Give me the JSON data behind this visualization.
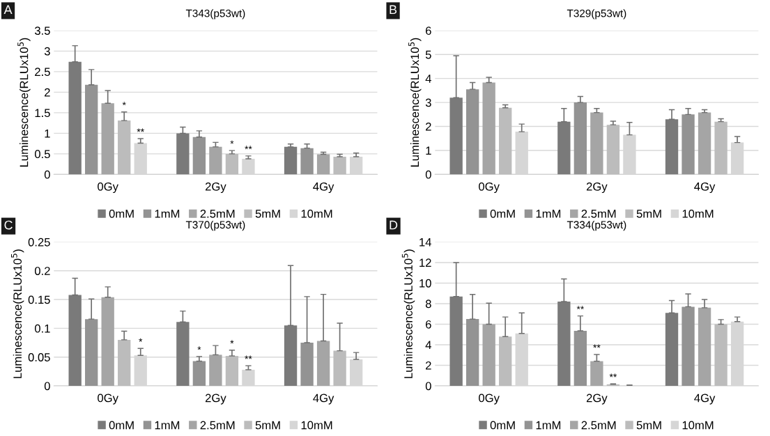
{
  "chart_data": [
    {
      "type": "bar",
      "title": "T343(p53wt)",
      "ylabel": "Luminescence(RLUx10$^{5}$)",
      "annotations": [
        "A"
      ],
      "categories": [
        "0Gy",
        "2Gy",
        "4Gy"
      ],
      "ylim": [
        0,
        3.5
      ],
      "yticks": [
        0,
        0.5,
        1,
        1.5,
        2,
        2.5,
        3,
        3.5
      ],
      "grid": "y",
      "legend": "bottom",
      "series": [
        {
          "name": "0mM",
          "color": "#7a7a7a",
          "values": [
            2.74,
            1.0,
            0.67
          ],
          "errors": [
            [
              2.74,
              3.13
            ],
            [
              1.0,
              1.15
            ],
            [
              0.67,
              0.74
            ]
          ]
        },
        {
          "name": "1mM",
          "color": "#939393",
          "values": [
            2.18,
            0.91,
            0.64
          ],
          "errors": [
            [
              2.18,
              2.55
            ],
            [
              0.91,
              1.06
            ],
            [
              0.64,
              0.74
            ]
          ]
        },
        {
          "name": "2.5mM",
          "color": "#a5a5a5",
          "values": [
            1.73,
            0.67,
            0.49
          ],
          "errors": [
            [
              1.73,
              2.04
            ],
            [
              0.67,
              0.78
            ],
            [
              0.49,
              0.54
            ]
          ]
        },
        {
          "name": "5mM",
          "color": "#bcbcbc",
          "values": [
            1.31,
            0.5,
            0.43
          ],
          "errors": [
            [
              1.31,
              1.52
            ],
            [
              0.5,
              0.58
            ],
            [
              0.43,
              0.49
            ]
          ],
          "value_labels": [
            "*",
            "*",
            null
          ]
        },
        {
          "name": "10mM",
          "color": "#d6d6d6",
          "values": [
            0.76,
            0.38,
            0.43
          ],
          "errors": [
            [
              0.76,
              0.87
            ],
            [
              0.38,
              0.45
            ],
            [
              0.43,
              0.52
            ]
          ],
          "value_labels": [
            "**",
            "**",
            null
          ]
        }
      ]
    },
    {
      "type": "bar",
      "title": "T329(p53wt)",
      "ylabel": "Luminescence(RLUx10$^{5}$)",
      "annotations": [
        "B"
      ],
      "categories": [
        "0Gy",
        "2Gy",
        "4Gy"
      ],
      "ylim": [
        0,
        6
      ],
      "yticks": [
        0,
        1,
        2,
        3,
        4,
        5,
        6
      ],
      "grid": "y",
      "legend": "bottom",
      "series": [
        {
          "name": "0mM",
          "color": "#7a7a7a",
          "values": [
            3.2,
            2.2,
            2.3
          ],
          "errors": [
            [
              3.2,
              4.95
            ],
            [
              2.2,
              2.75
            ],
            [
              2.3,
              2.7
            ]
          ]
        },
        {
          "name": "1mM",
          "color": "#939393",
          "values": [
            3.55,
            3.0,
            2.5
          ],
          "errors": [
            [
              3.55,
              3.83
            ],
            [
              3.0,
              3.25
            ],
            [
              2.5,
              2.75
            ]
          ]
        },
        {
          "name": "2.5mM",
          "color": "#a5a5a5",
          "values": [
            3.83,
            2.58,
            2.58
          ],
          "errors": [
            [
              3.83,
              4.05
            ],
            [
              2.58,
              2.75
            ],
            [
              2.58,
              2.7
            ]
          ]
        },
        {
          "name": "5mM",
          "color": "#bcbcbc",
          "values": [
            2.78,
            2.07,
            2.2
          ],
          "errors": [
            [
              2.78,
              2.9
            ],
            [
              2.07,
              2.22
            ],
            [
              2.2,
              2.32
            ]
          ]
        },
        {
          "name": "10mM",
          "color": "#d6d6d6",
          "values": [
            1.78,
            1.65,
            1.33
          ],
          "errors": [
            [
              1.78,
              2.1
            ],
            [
              1.65,
              2.17
            ],
            [
              1.33,
              1.58
            ]
          ]
        }
      ]
    },
    {
      "type": "bar",
      "title": "T370(p53wt)",
      "ylabel": "Luminescence(RLUx10$^{5}$)",
      "annotations": [
        "C"
      ],
      "categories": [
        "0Gy",
        "2Gy",
        "4Gy"
      ],
      "ylim": [
        0,
        0.25
      ],
      "yticks": [
        0,
        0.05,
        0.1,
        0.15,
        0.2,
        0.25
      ],
      "grid": "y",
      "legend": "bottom",
      "series": [
        {
          "name": "0mM",
          "color": "#7a7a7a",
          "values": [
            0.158,
            0.111,
            0.105
          ],
          "errors": [
            [
              0.158,
              0.187
            ],
            [
              0.111,
              0.13
            ],
            [
              0.105,
              0.209
            ]
          ]
        },
        {
          "name": "1mM",
          "color": "#939393",
          "values": [
            0.116,
            0.043,
            0.075
          ],
          "errors": [
            [
              0.116,
              0.151
            ],
            [
              0.043,
              0.051
            ],
            [
              0.075,
              0.155
            ]
          ],
          "value_labels": [
            null,
            "*",
            null
          ]
        },
        {
          "name": "2.5mM",
          "color": "#a5a5a5",
          "values": [
            0.154,
            0.054,
            0.078
          ],
          "errors": [
            [
              0.154,
              0.172
            ],
            [
              0.054,
              0.07
            ],
            [
              0.078,
              0.159
            ]
          ]
        },
        {
          "name": "5mM",
          "color": "#bcbcbc",
          "values": [
            0.08,
            0.052,
            0.061
          ],
          "errors": [
            [
              0.08,
              0.095
            ],
            [
              0.052,
              0.062
            ],
            [
              0.061,
              0.109
            ]
          ],
          "value_labels": [
            null,
            "*",
            null
          ]
        },
        {
          "name": "10mM",
          "color": "#d6d6d6",
          "values": [
            0.053,
            0.028,
            0.046
          ],
          "errors": [
            [
              0.053,
              0.065
            ],
            [
              0.028,
              0.035
            ],
            [
              0.046,
              0.058
            ]
          ],
          "value_labels": [
            "*",
            "**",
            null
          ]
        }
      ]
    },
    {
      "type": "bar",
      "title": "T334(p53wt)",
      "ylabel": "Luminescence(RLUx10$^{5}$)",
      "annotations": [
        "D"
      ],
      "categories": [
        "0Gy",
        "2Gy",
        "4Gy"
      ],
      "ylim": [
        0,
        14
      ],
      "yticks": [
        0,
        2,
        4,
        6,
        8,
        10,
        12,
        14
      ],
      "grid": "y",
      "legend": "bottom",
      "series": [
        {
          "name": "0mM",
          "color": "#7a7a7a",
          "values": [
            8.7,
            8.2,
            7.1
          ],
          "errors": [
            [
              8.7,
              12.0
            ],
            [
              8.2,
              10.4
            ],
            [
              7.1,
              8.3
            ]
          ]
        },
        {
          "name": "1mM",
          "color": "#939393",
          "values": [
            6.5,
            5.35,
            7.7
          ],
          "errors": [
            [
              6.5,
              8.9
            ],
            [
              5.35,
              6.8
            ],
            [
              7.7,
              8.95
            ]
          ],
          "value_labels": [
            null,
            "**",
            null
          ]
        },
        {
          "name": "2.5mM",
          "color": "#a5a5a5",
          "values": [
            6.0,
            2.4,
            7.6
          ],
          "errors": [
            [
              6.0,
              8.05
            ],
            [
              2.4,
              3.05
            ],
            [
              7.6,
              8.4
            ]
          ],
          "value_labels": [
            null,
            "**",
            null
          ]
        },
        {
          "name": "5mM",
          "color": "#bcbcbc",
          "values": [
            4.8,
            0.15,
            6.0
          ],
          "errors": [
            [
              4.8,
              6.7
            ],
            [
              0.15,
              0.2
            ],
            [
              6.0,
              6.45
            ]
          ],
          "value_labels": [
            null,
            "**",
            null
          ]
        },
        {
          "name": "10mM",
          "color": "#d6d6d6",
          "values": [
            5.1,
            0.05,
            6.25
          ],
          "errors": [
            [
              5.1,
              7.1
            ],
            [
              0.05,
              0.08
            ],
            [
              6.25,
              6.7
            ]
          ]
        }
      ]
    }
  ]
}
